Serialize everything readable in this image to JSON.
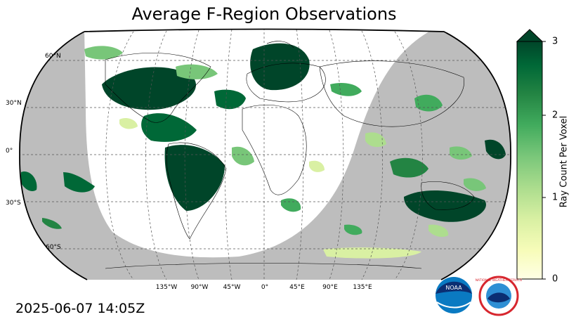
{
  "title": "Average F-Region Observations",
  "timestamp": "2025-06-07 14:05Z",
  "map": {
    "projection": "robinson",
    "lat_labels": [
      "60°N",
      "30°N",
      "0°",
      "30°S",
      "60°S"
    ],
    "lon_labels": [
      "135°W",
      "90°W",
      "45°W",
      "0°",
      "45°E",
      "90°E",
      "135°E"
    ],
    "night_shade_color": "#bdbdbd",
    "gridlines": true
  },
  "colorbar": {
    "label": "Ray Count Per Voxel",
    "ticks": [
      "0",
      "1",
      "2",
      "3"
    ],
    "range": [
      0,
      3
    ],
    "extend": "max",
    "colors": [
      "#ffffe5",
      "#f7fcb9",
      "#d9f0a3",
      "#addd8e",
      "#78c679",
      "#41ab5d",
      "#238443",
      "#006837",
      "#004529"
    ]
  },
  "logos": [
    {
      "name": "noaa-logo",
      "text": "NOAA"
    },
    {
      "name": "nws-logo",
      "text": "NATIONAL WEATHER SERVICE"
    }
  ]
}
